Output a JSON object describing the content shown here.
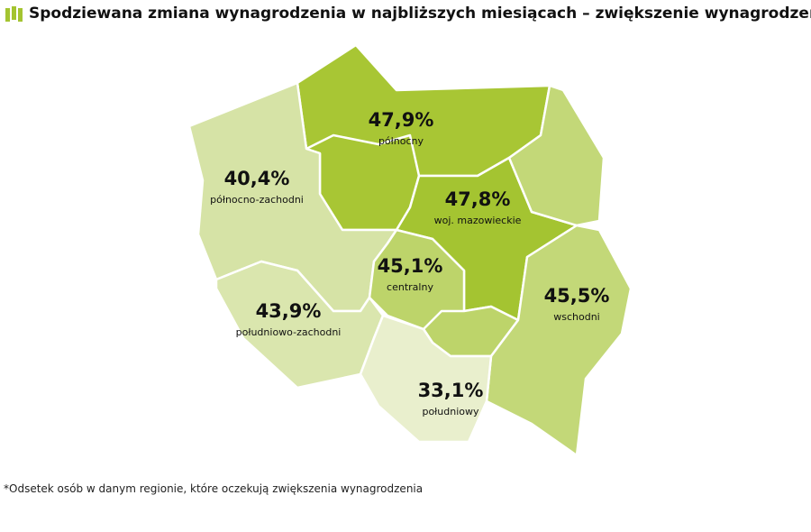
{
  "title": "Spodziewana zmiana wynagrodzenia w najbliższych miesiącach – zwiększenie wynagrodzenia*",
  "regions": [
    {
      "name": "północny",
      "value": 47.9,
      "value_label": "47,9%",
      "color": "#a8c634"
    },
    {
      "name": "północno-zachodni",
      "value": 40.4,
      "value_label": "40,4%",
      "color": "#d6e3a6"
    },
    {
      "name": "woj. mazowieckie",
      "value": 47.8,
      "value_label": "47,8%",
      "color": "#a4c431"
    },
    {
      "name": "centralny",
      "value": 45.1,
      "value_label": "45,1%",
      "color": "#bdd46a"
    },
    {
      "name": "wschodni",
      "value": 45.5,
      "value_label": "45,5%",
      "color": "#c3d878"
    },
    {
      "name": "południowo-zachodni",
      "value": 43.9,
      "value_label": "43,9%",
      "color": "#dae6ae"
    },
    {
      "name": "południowy",
      "value": 33.1,
      "value_label": "33,1%",
      "color": "#e9efcd"
    }
  ],
  "footnote": "*Odsetek osób w danym regionie, które oczekują zwiększenia wynagrodzenia"
}
